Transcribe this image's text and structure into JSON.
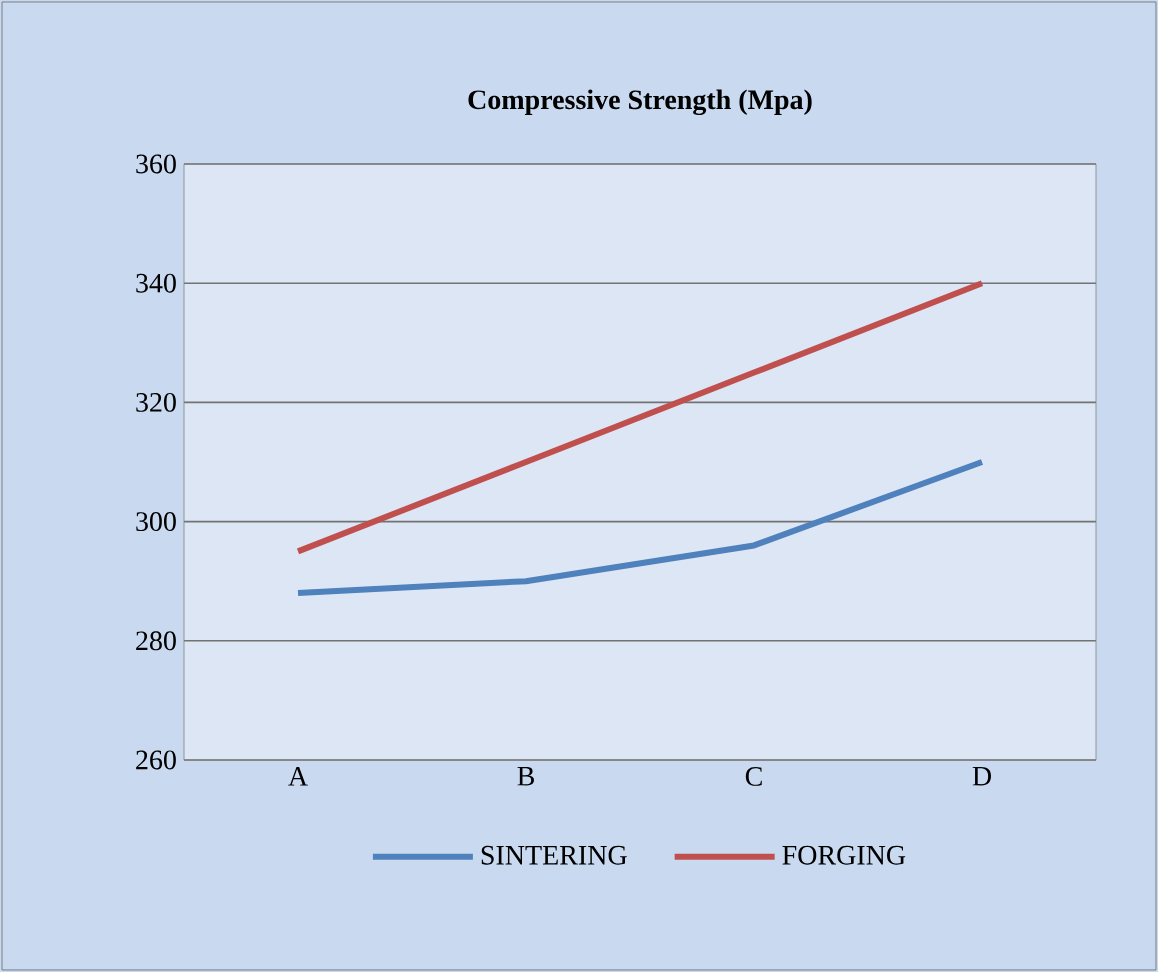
{
  "chart_data": {
    "type": "line",
    "title": "Compressive Strength (Mpa)",
    "categories": [
      "A",
      "B",
      "C",
      "D"
    ],
    "series": [
      {
        "name": "SINTERING",
        "color": "#4f81bd",
        "values": [
          288,
          290,
          296,
          310
        ]
      },
      {
        "name": "FORGING",
        "color": "#c0504d",
        "values": [
          295,
          310,
          325,
          340
        ]
      }
    ],
    "ylim": [
      260,
      360
    ],
    "yticks": [
      260,
      280,
      300,
      320,
      340,
      360
    ],
    "grid": "y",
    "legend": "bottom",
    "marker": "none",
    "line_style": "solid"
  }
}
